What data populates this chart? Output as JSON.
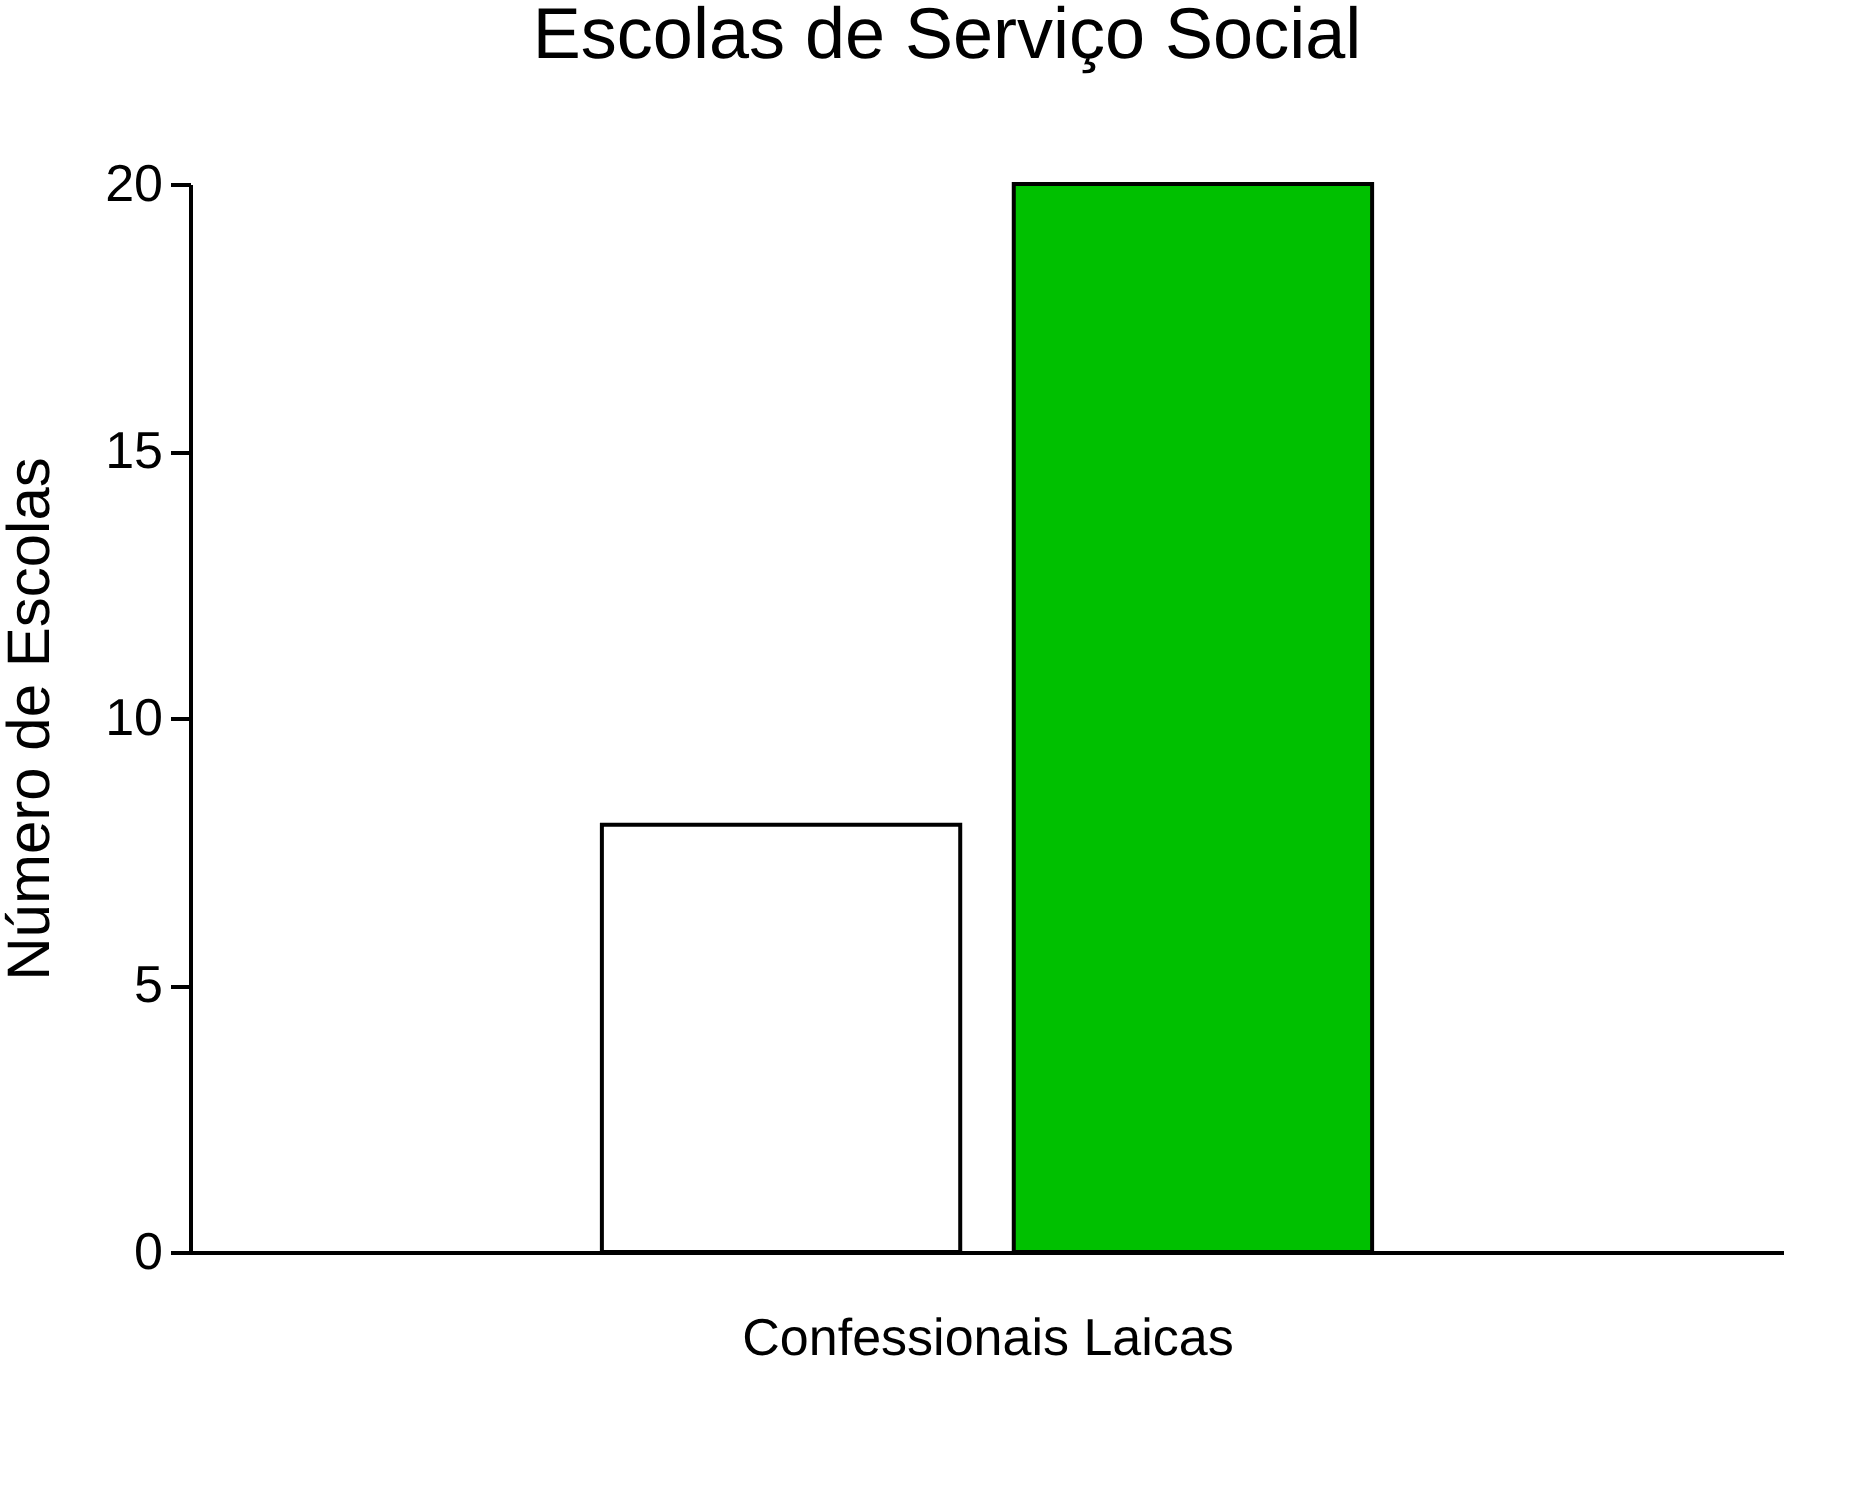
{
  "chart_data": {
    "type": "bar",
    "title": "Escolas de Serviço Social",
    "xlabel": "Confessionais Laicas",
    "ylabel": "Número de Escolas",
    "categories": [
      null,
      null
    ],
    "values": [
      8,
      20
    ],
    "colors": [
      "#ffffff",
      "#00c000"
    ],
    "ylim": [
      0,
      20
    ],
    "yticks": [
      0,
      5,
      10,
      15,
      20
    ],
    "grid": false
  }
}
